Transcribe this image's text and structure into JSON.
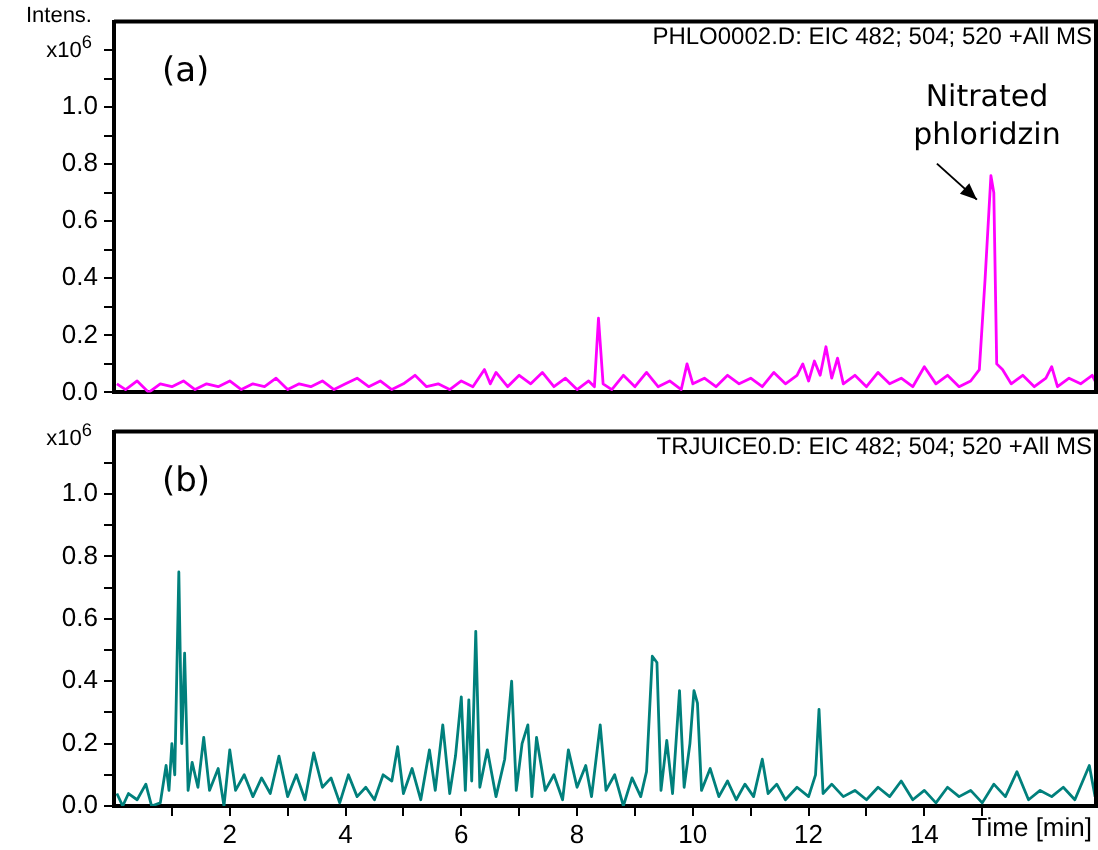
{
  "chart_data": [
    {
      "type": "line",
      "title": "PHLO0002.D: EIC 482; 504; 520 +All MS",
      "ylabel": "Intens. x10$^{6}$",
      "tick_labels": "y",
      "marker": "none",
      "annotations": [
        "(a)",
        {
          "text": "Nitrated phloridzin",
          "x": 15.15,
          "y": 0.76
        }
      ],
      "xlim": [
        0,
        17
      ],
      "ylim": [
        0,
        1.3
      ],
      "yticks": [
        {
          "value": 0,
          "label": "0.0"
        },
        {
          "value": 0.1,
          "label": null
        },
        0.2,
        {
          "value": 0.3,
          "label": null
        },
        0.4,
        {
          "value": 0.5,
          "label": null
        },
        0.6,
        {
          "value": 0.7,
          "label": null
        },
        0.8,
        {
          "value": 0.9,
          "label": null
        },
        {
          "value": 1,
          "label": "1.0"
        },
        {
          "value": 1.1,
          "label": null
        },
        {
          "value": 1.2,
          "label": null
        }
      ],
      "series": [
        {
          "color": "#ff00ff",
          "x": [
            0.05,
            0.2,
            0.4,
            0.6,
            0.8,
            1.0,
            1.2,
            1.4,
            1.6,
            1.8,
            2.0,
            2.2,
            2.4,
            2.6,
            2.8,
            3.0,
            3.2,
            3.4,
            3.6,
            3.8,
            4.0,
            4.2,
            4.4,
            4.6,
            4.8,
            5.0,
            5.2,
            5.4,
            5.6,
            5.8,
            6.0,
            6.2,
            6.4,
            6.5,
            6.6,
            6.8,
            7.0,
            7.2,
            7.4,
            7.6,
            7.8,
            8.0,
            8.2,
            8.3,
            8.37,
            8.45,
            8.6,
            8.8,
            9.0,
            9.2,
            9.4,
            9.6,
            9.8,
            9.9,
            10.0,
            10.2,
            10.4,
            10.6,
            10.8,
            11.0,
            11.2,
            11.4,
            11.6,
            11.8,
            11.9,
            12.0,
            12.1,
            12.2,
            12.3,
            12.4,
            12.5,
            12.6,
            12.8,
            13.0,
            13.2,
            13.4,
            13.6,
            13.8,
            14.0,
            14.2,
            14.4,
            14.6,
            14.8,
            14.95,
            15.05,
            15.15,
            15.2,
            15.25,
            15.35,
            15.5,
            15.7,
            15.9,
            16.1,
            16.2,
            16.3,
            16.5,
            16.7,
            16.9,
            17.0
          ],
          "values": [
            0.03,
            0.01,
            0.04,
            0.0,
            0.03,
            0.02,
            0.04,
            0.01,
            0.03,
            0.02,
            0.04,
            0.01,
            0.03,
            0.02,
            0.05,
            0.01,
            0.03,
            0.02,
            0.04,
            0.01,
            0.03,
            0.05,
            0.02,
            0.04,
            0.01,
            0.03,
            0.06,
            0.02,
            0.03,
            0.01,
            0.04,
            0.02,
            0.08,
            0.03,
            0.07,
            0.02,
            0.06,
            0.03,
            0.07,
            0.02,
            0.05,
            0.01,
            0.04,
            0.02,
            0.26,
            0.03,
            0.01,
            0.06,
            0.02,
            0.07,
            0.02,
            0.04,
            0.01,
            0.1,
            0.03,
            0.05,
            0.02,
            0.06,
            0.03,
            0.05,
            0.02,
            0.07,
            0.03,
            0.06,
            0.1,
            0.04,
            0.11,
            0.06,
            0.16,
            0.05,
            0.12,
            0.03,
            0.06,
            0.02,
            0.07,
            0.03,
            0.05,
            0.02,
            0.09,
            0.03,
            0.06,
            0.02,
            0.04,
            0.08,
            0.4,
            0.76,
            0.7,
            0.1,
            0.08,
            0.03,
            0.06,
            0.02,
            0.05,
            0.09,
            0.02,
            0.05,
            0.03,
            0.06,
            0.02
          ]
        }
      ]
    },
    {
      "type": "line",
      "title": "TRJUICE0.D: EIC 482; 504; 520 +All MS",
      "ylabel": "x10$^{6}$",
      "xlabel": "Time [min]",
      "marker": "none",
      "annotations": [
        "(b)"
      ],
      "xlim": [
        0,
        17
      ],
      "ylim": [
        0,
        1.2
      ],
      "xticks": [
        {
          "value": 1,
          "label": null
        },
        2,
        {
          "value": 3,
          "label": null
        },
        4,
        {
          "value": 5,
          "label": null
        },
        6,
        {
          "value": 7,
          "label": null
        },
        8,
        {
          "value": 9,
          "label": null
        },
        10,
        {
          "value": 11,
          "label": null
        },
        12,
        {
          "value": 13,
          "label": null
        },
        14,
        {
          "value": 15,
          "label": null
        }
      ],
      "yticks": [
        {
          "value": 0,
          "label": "0.0"
        },
        {
          "value": 0.1,
          "label": null
        },
        0.2,
        {
          "value": 0.3,
          "label": null
        },
        0.4,
        {
          "value": 0.5,
          "label": null
        },
        0.6,
        {
          "value": 0.7,
          "label": null
        },
        0.8,
        {
          "value": 0.9,
          "label": null
        },
        {
          "value": 1,
          "label": "1.0"
        },
        {
          "value": 1.1,
          "label": null
        }
      ],
      "series": [
        {
          "color": "#00807c",
          "x": [
            0.05,
            0.15,
            0.25,
            0.4,
            0.55,
            0.65,
            0.8,
            0.9,
            0.95,
            1.0,
            1.05,
            1.12,
            1.17,
            1.22,
            1.28,
            1.35,
            1.45,
            1.55,
            1.65,
            1.8,
            1.9,
            2.0,
            2.1,
            2.25,
            2.4,
            2.55,
            2.7,
            2.85,
            3.0,
            3.15,
            3.3,
            3.45,
            3.6,
            3.75,
            3.9,
            4.05,
            4.2,
            4.35,
            4.5,
            4.65,
            4.8,
            4.9,
            5.0,
            5.15,
            5.3,
            5.45,
            5.55,
            5.68,
            5.8,
            5.9,
            6.0,
            6.07,
            6.13,
            6.18,
            6.25,
            6.32,
            6.45,
            6.6,
            6.75,
            6.87,
            6.95,
            7.05,
            7.15,
            7.22,
            7.3,
            7.45,
            7.6,
            7.75,
            7.85,
            8.0,
            8.15,
            8.25,
            8.4,
            8.5,
            8.65,
            8.8,
            8.95,
            9.1,
            9.2,
            9.3,
            9.38,
            9.45,
            9.55,
            9.65,
            9.77,
            9.85,
            9.95,
            10.02,
            10.08,
            10.15,
            10.3,
            10.45,
            10.6,
            10.75,
            10.9,
            11.05,
            11.2,
            11.3,
            11.45,
            11.6,
            11.8,
            12.0,
            12.12,
            12.18,
            12.25,
            12.4,
            12.6,
            12.8,
            13.0,
            13.2,
            13.4,
            13.6,
            13.8,
            14.0,
            14.2,
            14.4,
            14.6,
            14.8,
            15.0,
            15.2,
            15.4,
            15.6,
            15.8,
            16.0,
            16.2,
            16.4,
            16.6,
            16.85,
            16.95
          ],
          "values": [
            0.04,
            0.0,
            0.04,
            0.02,
            0.07,
            0.0,
            0.01,
            0.13,
            0.05,
            0.2,
            0.1,
            0.75,
            0.2,
            0.49,
            0.05,
            0.14,
            0.06,
            0.22,
            0.05,
            0.12,
            0.0,
            0.18,
            0.05,
            0.1,
            0.03,
            0.09,
            0.04,
            0.16,
            0.03,
            0.1,
            0.02,
            0.17,
            0.06,
            0.09,
            0.01,
            0.1,
            0.03,
            0.06,
            0.02,
            0.1,
            0.08,
            0.19,
            0.04,
            0.12,
            0.02,
            0.18,
            0.05,
            0.26,
            0.04,
            0.16,
            0.35,
            0.05,
            0.34,
            0.08,
            0.56,
            0.06,
            0.18,
            0.03,
            0.15,
            0.4,
            0.05,
            0.2,
            0.26,
            0.03,
            0.22,
            0.05,
            0.1,
            0.02,
            0.18,
            0.06,
            0.13,
            0.03,
            0.26,
            0.05,
            0.1,
            0.0,
            0.09,
            0.03,
            0.11,
            0.48,
            0.46,
            0.05,
            0.21,
            0.04,
            0.37,
            0.06,
            0.2,
            0.37,
            0.33,
            0.05,
            0.12,
            0.03,
            0.08,
            0.02,
            0.07,
            0.03,
            0.15,
            0.04,
            0.07,
            0.02,
            0.06,
            0.03,
            0.1,
            0.31,
            0.04,
            0.07,
            0.03,
            0.05,
            0.02,
            0.06,
            0.03,
            0.08,
            0.02,
            0.05,
            0.01,
            0.06,
            0.03,
            0.05,
            0.01,
            0.07,
            0.03,
            0.11,
            0.02,
            0.05,
            0.03,
            0.06,
            0.02,
            0.13,
            0.03
          ]
        }
      ]
    }
  ]
}
